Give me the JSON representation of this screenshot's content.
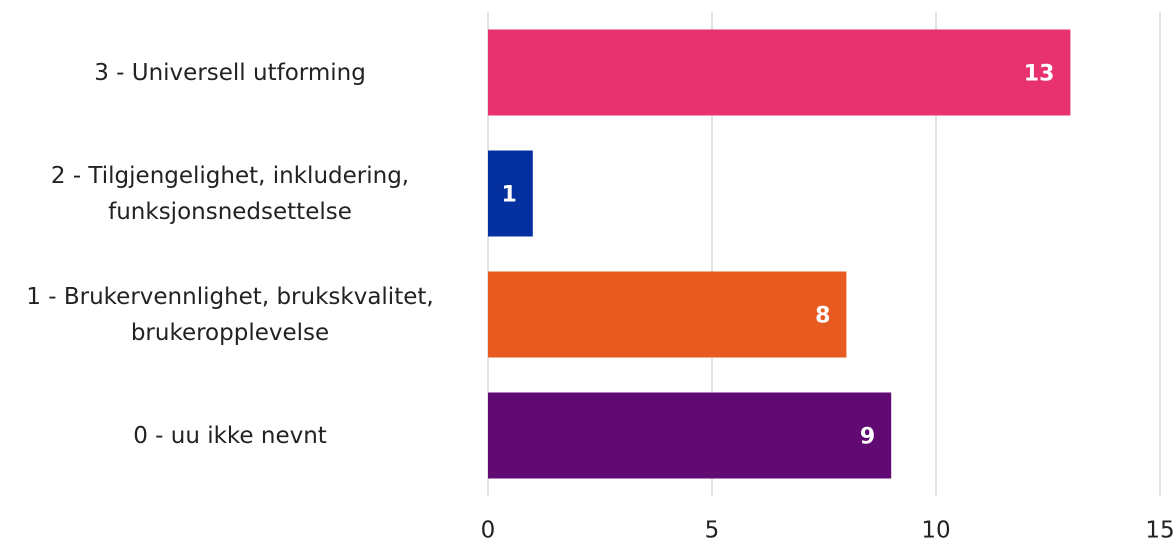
{
  "chart_data": {
    "type": "barh",
    "categories": [
      "3 - Universell utforming",
      "2 - Tilgjengelighet, inkludering, funksjonsnedsettelse",
      "1 - Brukervennlighet, brukskvalitet, brukeropplevelse",
      "0 - uu ikke nevnt"
    ],
    "values": [
      13,
      1,
      8,
      9
    ],
    "colors": [
      "#e8326f",
      "#0530a0",
      "#e85b20",
      "#620a74"
    ],
    "xlim": [
      0,
      15
    ],
    "xticks": [
      0,
      5,
      10,
      15
    ],
    "grid": true
  }
}
